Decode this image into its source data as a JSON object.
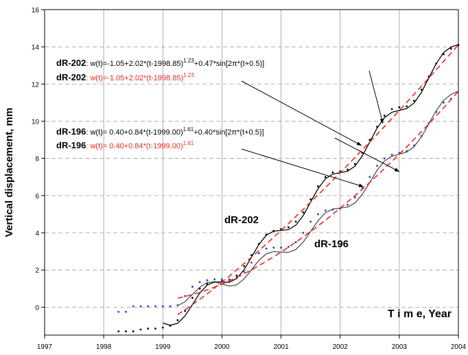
{
  "chart_data": {
    "type": "line",
    "ylabel": "Vertical displacement, mm",
    "xlabel": "T i m e, Year",
    "xlim": [
      1997,
      2004
    ],
    "ylim": [
      -1.5,
      16
    ],
    "xticks": [
      1997,
      1998,
      1999,
      2000,
      2001,
      2002,
      2003,
      2004
    ],
    "yticks": [
      0,
      2,
      4,
      6,
      8,
      10,
      12,
      14,
      16
    ],
    "grid": true,
    "labels": [
      "dR-202",
      "dR-196"
    ],
    "annotations": [
      {
        "label": "dR-202",
        "parts": [
          ": w(t)=-1.05+2.02*(t-1998.85)",
          "1.23",
          "+0.47*sin[2π*(t+0.5)]"
        ],
        "color": "#000000"
      },
      {
        "label": "dR-202",
        "parts": [
          ": w(t)=-1.05+2.02*(t-1998.85)",
          "1.23"
        ],
        "color": "#e8281e"
      },
      {
        "label": "dR-196",
        "parts": [
          ": w(t)= 0.40+0.84*(t-1999.00)",
          "1.61",
          "+0.40*sin[2π*(t+0.5)]"
        ],
        "color": "#000000"
      },
      {
        "label": "dR-196",
        "parts": [
          ": w(t)= 0.40+0.84*(t-1999.00)",
          "1.61"
        ],
        "color": "#e8281e"
      }
    ],
    "series": [
      {
        "style": "dots",
        "color": "#000000",
        "x": [
          1998.25,
          1998.375,
          1998.5,
          1998.625,
          1998.75,
          1998.875,
          1999.0,
          1999.125,
          1999.25,
          1999.375,
          1999.5,
          1999.625,
          1999.75,
          1999.875,
          2000.0,
          2000.125,
          2000.25,
          2000.375,
          2000.5,
          2000.625,
          2000.75,
          2000.875,
          2001.0,
          2001.125,
          2001.25,
          2001.375,
          2001.5,
          2001.625,
          2001.75,
          2001.875,
          2002.0,
          2002.125,
          2002.25,
          2002.375,
          2002.5,
          2002.625,
          2002.75,
          2002.875,
          2003.0,
          2003.125,
          2003.25,
          2003.375,
          2003.5,
          2003.625,
          2003.75,
          2003.875,
          2004.0
        ],
        "values": [
          -1.3,
          -1.3,
          -1.3,
          -1.2,
          -1.15,
          -1.15,
          -1.1,
          -1.0,
          -0.7,
          -0.2,
          0.5,
          1.0,
          1.25,
          1.35,
          1.4,
          1.45,
          1.7,
          2.2,
          2.8,
          3.4,
          3.9,
          4.1,
          4.2,
          4.3,
          4.6,
          5.1,
          5.8,
          6.5,
          7.0,
          7.25,
          7.3,
          7.4,
          7.7,
          8.3,
          9.0,
          9.7,
          10.3,
          10.65,
          10.75,
          10.8,
          11.1,
          11.7,
          12.4,
          13.1,
          13.6,
          13.9,
          14.1
        ]
      },
      {
        "style": "dots",
        "color": "#1f3fbf",
        "x": [
          1998.25,
          1998.375,
          1998.5,
          1998.625,
          1998.75,
          1998.875,
          1999.0,
          1999.125,
          1999.25,
          1999.375,
          1999.5,
          1999.625,
          1999.75,
          1999.875,
          2000.0,
          2000.125,
          2000.25,
          2000.375,
          2000.5,
          2000.625,
          2000.75,
          2000.875,
          2001.0,
          2001.125,
          2001.25,
          2001.375,
          2001.5,
          2001.625,
          2001.75,
          2001.875,
          2002.0,
          2002.125,
          2002.25,
          2002.375,
          2002.5,
          2002.625,
          2002.75,
          2002.875,
          2003.0,
          2003.125,
          2003.25,
          2003.375,
          2003.5,
          2003.625,
          2003.75,
          2003.875
        ],
        "values": [
          -0.25,
          -0.25,
          0.05,
          0.05,
          0.05,
          0.05,
          0.05,
          0.05,
          0.1,
          0.6,
          1.1,
          1.35,
          1.45,
          1.5,
          1.5,
          1.5,
          1.6,
          1.9,
          2.4,
          2.9,
          3.15,
          3.2,
          3.2,
          3.25,
          3.5,
          4.0,
          4.6,
          5.0,
          5.2,
          5.25,
          5.3,
          5.5,
          5.9,
          6.4,
          7.0,
          7.6,
          8.0,
          8.2,
          8.3,
          8.4,
          8.7,
          9.2,
          9.9,
          10.5,
          11.0,
          11.2
        ]
      },
      {
        "style": "solid",
        "color": "#000000",
        "x": [
          1999.0,
          1999.125,
          1999.25,
          1999.375,
          1999.5,
          1999.625,
          1999.75,
          1999.875,
          2000.0,
          2000.125,
          2000.25,
          2000.375,
          2000.5,
          2000.625,
          2000.75,
          2000.875,
          2001.0,
          2001.125,
          2001.25,
          2001.375,
          2001.5,
          2001.625,
          2001.75,
          2001.875,
          2002.0,
          2002.125,
          2002.25,
          2002.375,
          2002.5,
          2002.625,
          2002.75,
          2002.875,
          2003.0,
          2003.125,
          2003.25,
          2003.375,
          2003.5,
          2003.625,
          2003.75,
          2003.875,
          2004.0
        ],
        "values": [
          -0.85,
          -0.97,
          -0.87,
          -0.47,
          0.14,
          0.76,
          1.19,
          1.36,
          1.35,
          1.34,
          1.54,
          2.02,
          2.69,
          3.37,
          3.87,
          4.09,
          4.13,
          4.17,
          4.41,
          4.93,
          5.65,
          6.37,
          6.9,
          7.16,
          7.23,
          7.31,
          7.58,
          8.14,
          8.88,
          9.63,
          10.19,
          10.48,
          10.58,
          10.68,
          10.98,
          11.55,
          12.33,
          13.1,
          13.69,
          13.99,
          14.12
        ]
      },
      {
        "style": "solid",
        "color": "#505050",
        "x": [
          1999.25,
          1999.375,
          1999.5,
          1999.625,
          1999.75,
          1999.875,
          2000.0,
          2000.125,
          2000.25,
          2000.375,
          2000.5,
          2000.625,
          2000.75,
          2000.875,
          2001.0,
          2001.125,
          2001.25,
          2001.375,
          2001.5,
          2001.625,
          2001.75,
          2001.875,
          2002.0,
          2002.125,
          2002.25,
          2002.375,
          2002.5,
          2002.625,
          2002.75,
          2002.875,
          2003.0,
          2003.125,
          2003.25,
          2003.375,
          2003.5,
          2003.625,
          2003.75,
          2003.875,
          2004.0
        ],
        "values": [
          0.09,
          0.29,
          0.68,
          1.07,
          1.33,
          1.36,
          1.24,
          1.14,
          1.2,
          1.52,
          2.01,
          2.52,
          2.87,
          2.99,
          2.96,
          2.95,
          3.1,
          3.5,
          4.07,
          4.65,
          5.08,
          5.28,
          5.33,
          5.38,
          5.6,
          6.07,
          6.71,
          7.36,
          7.86,
          8.12,
          8.23,
          8.34,
          8.63,
          9.16,
          9.86,
          10.57,
          11.12,
          11.44,
          11.61
        ]
      },
      {
        "style": "dashed",
        "color": "#e8281e",
        "x": [
          1999.25,
          1999.375,
          1999.5,
          1999.625,
          1999.75,
          1999.875,
          2000.0,
          2000.125,
          2000.25,
          2000.375,
          2000.5,
          2000.625,
          2000.75,
          2000.875,
          2001.0,
          2001.125,
          2001.25,
          2001.375,
          2001.5,
          2001.625,
          2001.75,
          2001.875,
          2002.0,
          2002.125,
          2002.25,
          2002.375,
          2002.5,
          2002.625,
          2002.75,
          2002.875,
          2003.0,
          2003.125,
          2003.25,
          2003.375,
          2003.5,
          2003.625,
          2003.75,
          2003.875,
          2004.0
        ],
        "values": [
          -0.4,
          -0.14,
          0.14,
          0.43,
          0.72,
          1.03,
          1.35,
          1.67,
          2.01,
          2.35,
          2.69,
          3.04,
          3.4,
          3.76,
          4.13,
          4.5,
          4.88,
          5.26,
          5.65,
          6.04,
          6.43,
          6.83,
          7.23,
          7.64,
          8.05,
          8.47,
          8.88,
          9.3,
          9.72,
          10.15,
          10.58,
          11.01,
          11.45,
          11.88,
          12.33,
          12.77,
          13.22,
          13.66,
          14.12
        ]
      },
      {
        "style": "dashed",
        "color": "#e8281e",
        "x": [
          1999.25,
          1999.375,
          1999.5,
          1999.625,
          1999.75,
          1999.875,
          2000.0,
          2000.125,
          2000.25,
          2000.375,
          2000.5,
          2000.625,
          2000.75,
          2000.875,
          2001.0,
          2001.125,
          2001.25,
          2001.375,
          2001.5,
          2001.625,
          2001.75,
          2001.875,
          2002.0,
          2002.125,
          2002.25,
          2002.375,
          2002.5,
          2002.625,
          2002.75,
          2002.875,
          2003.0,
          2003.125,
          2003.25,
          2003.375,
          2003.5,
          2003.625,
          2003.75,
          2003.875,
          2004.0
        ],
        "values": [
          0.49,
          0.57,
          0.68,
          0.79,
          0.93,
          1.08,
          1.24,
          1.42,
          1.6,
          1.8,
          2.01,
          2.24,
          2.47,
          2.71,
          2.96,
          3.23,
          3.5,
          3.78,
          4.07,
          4.37,
          4.68,
          5.0,
          5.33,
          5.66,
          6.0,
          6.35,
          6.71,
          7.08,
          7.46,
          7.84,
          8.23,
          8.62,
          9.03,
          9.44,
          9.86,
          10.29,
          10.72,
          11.16,
          11.61
        ]
      }
    ]
  }
}
